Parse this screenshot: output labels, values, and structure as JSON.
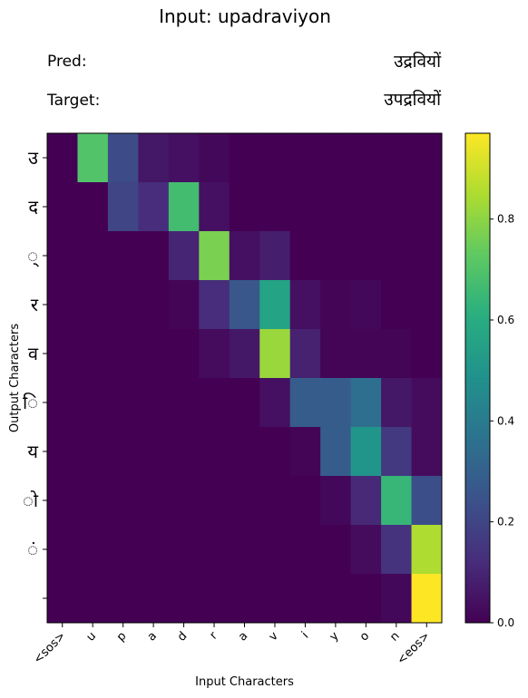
{
  "header": {
    "title": "Input: upadraviyon",
    "pred_label": "Pred:",
    "pred_value": "उद्रवियों",
    "target_label": "Target:",
    "target_value": "उपद्रवियों"
  },
  "chart_data": {
    "type": "heatmap",
    "xlabel": "Input Characters",
    "ylabel": "Output Characters",
    "x_categories": [
      "<sos>",
      "u",
      "p",
      "a",
      "d",
      "r",
      "a",
      "v",
      "i",
      "y",
      "o",
      "n",
      "<eos>"
    ],
    "y_categories": [
      "उ",
      "द",
      "्",
      "र",
      "व",
      "ि",
      "य",
      "ो",
      "ं",
      ""
    ],
    "values": [
      [
        0.0,
        0.7,
        0.22,
        0.06,
        0.04,
        0.02,
        0.0,
        0.0,
        0.0,
        0.0,
        0.0,
        0.0,
        0.0
      ],
      [
        0.0,
        0.0,
        0.2,
        0.12,
        0.67,
        0.04,
        0.0,
        0.0,
        0.0,
        0.0,
        0.0,
        0.0,
        0.0
      ],
      [
        0.0,
        0.0,
        0.0,
        0.0,
        0.1,
        0.77,
        0.04,
        0.08,
        0.0,
        0.0,
        0.0,
        0.0,
        0.0
      ],
      [
        0.0,
        0.0,
        0.0,
        0.0,
        0.01,
        0.12,
        0.26,
        0.56,
        0.04,
        0.01,
        0.02,
        0.0,
        0.0
      ],
      [
        0.0,
        0.0,
        0.0,
        0.0,
        0.0,
        0.03,
        0.06,
        0.82,
        0.09,
        0.01,
        0.01,
        0.01,
        0.0
      ],
      [
        0.0,
        0.0,
        0.0,
        0.0,
        0.0,
        0.0,
        0.0,
        0.04,
        0.28,
        0.28,
        0.35,
        0.06,
        0.03
      ],
      [
        0.0,
        0.0,
        0.0,
        0.0,
        0.0,
        0.0,
        0.0,
        0.0,
        0.01,
        0.28,
        0.5,
        0.16,
        0.03
      ],
      [
        0.0,
        0.0,
        0.0,
        0.0,
        0.0,
        0.0,
        0.0,
        0.0,
        0.0,
        0.02,
        0.11,
        0.64,
        0.23
      ],
      [
        0.0,
        0.0,
        0.0,
        0.0,
        0.0,
        0.0,
        0.0,
        0.0,
        0.0,
        0.0,
        0.03,
        0.14,
        0.85
      ],
      [
        0.0,
        0.0,
        0.0,
        0.0,
        0.0,
        0.0,
        0.0,
        0.0,
        0.0,
        0.0,
        0.0,
        0.02,
        0.97
      ]
    ],
    "colorbar": {
      "min": 0.0,
      "max": 0.97,
      "ticks": [
        0.0,
        0.2,
        0.4,
        0.6,
        0.8
      ],
      "colormap": "viridis"
    },
    "grid": false
  }
}
